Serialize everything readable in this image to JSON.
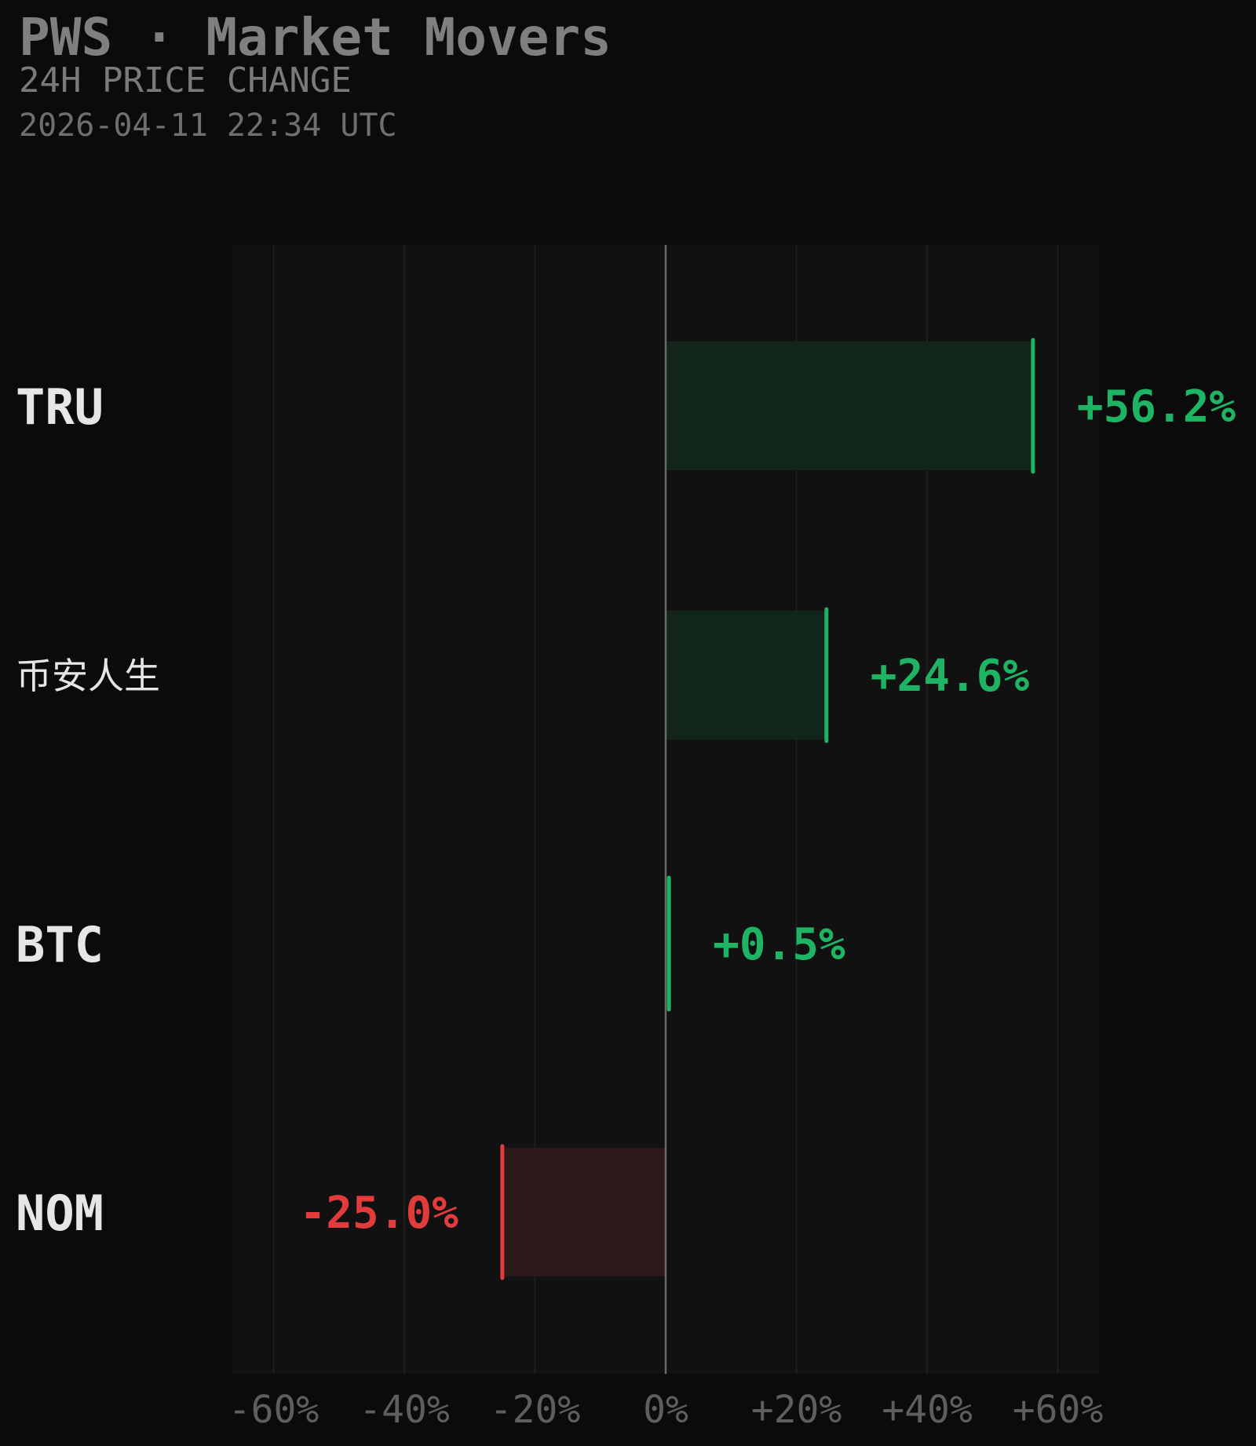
{
  "header": {
    "title": "PWS · Market Movers",
    "subtitle": "24H PRICE CHANGE",
    "timestamp": "2026-04-11 22:34 UTC"
  },
  "colors": {
    "background": "#0b0b0b",
    "plot_background": "#111111",
    "gridline": "#222222",
    "zero_line": "#6a6a6a",
    "positive": "#1fb464",
    "positive_fill": "#12251b",
    "negative": "#e23b3b",
    "negative_fill": "#2c1818",
    "label_text": "#e6e6e6",
    "tick_text": "#5e5e5e"
  },
  "chart_data": {
    "type": "bar",
    "orientation": "horizontal",
    "title": "",
    "xlabel": "",
    "ylabel": "",
    "xlim": [
      -60,
      60
    ],
    "grid": true,
    "categories": [
      "TRU",
      "币安人生",
      "BTC",
      "NOM"
    ],
    "values": [
      56.2,
      24.6,
      0.5,
      -25.0
    ],
    "value_labels": [
      "+56.2%",
      "+24.6%",
      "+0.5%",
      "-25.0%"
    ],
    "ticks": [
      -60,
      -40,
      -20,
      0,
      20,
      40,
      60
    ],
    "tick_labels": [
      "-60%",
      "-40%",
      "-20%",
      "0%",
      "+20%",
      "+40%",
      "+60%"
    ]
  }
}
